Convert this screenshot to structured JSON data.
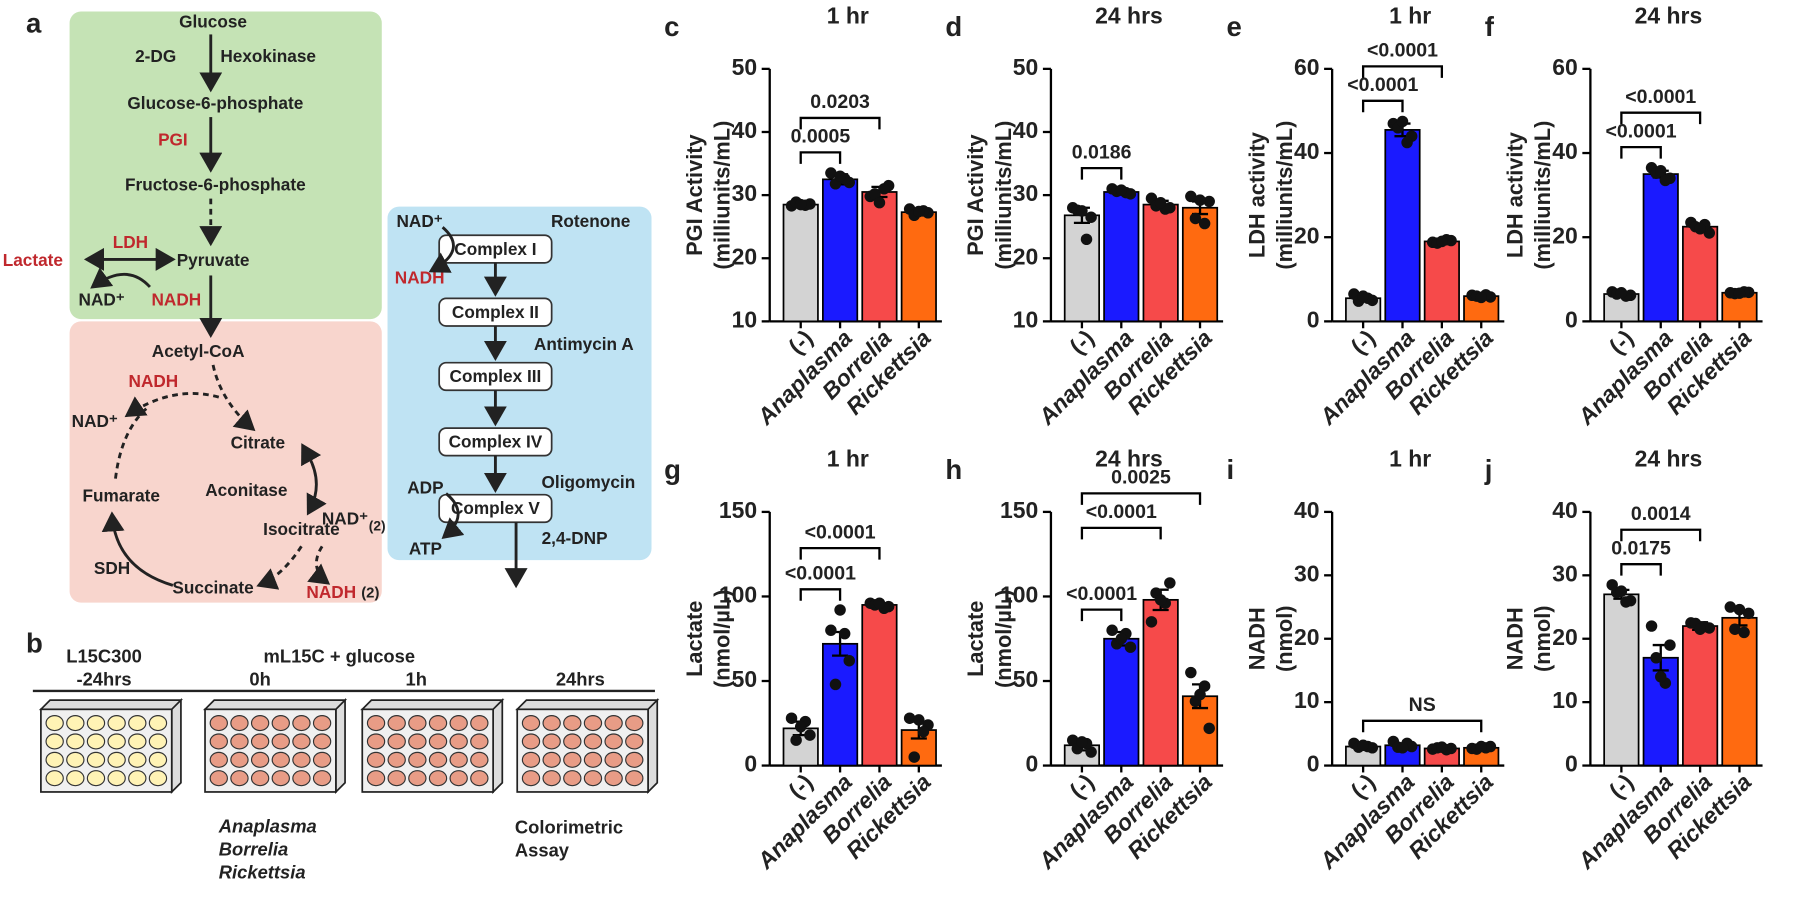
{
  "panel_a": {
    "letter": "a",
    "glucose": "Glucose",
    "dg": "2-DG",
    "hexokinase": "Hexokinase",
    "g6p": "Glucose-6-phosphate",
    "pgi": "PGI",
    "f6p": "Fructose-6-phosphate",
    "lactate": "Lactate",
    "ldh": "LDH",
    "pyruvate": "Pyruvate",
    "nad1": "NAD⁺",
    "nadh1": "NADH",
    "acetyl": "Acetyl-CoA",
    "nadh2": "NADH",
    "nad2": "NAD⁺",
    "citrate": "Citrate",
    "aconitase": "Aconitase",
    "fumarate": "Fumarate",
    "isocitrate": "Isocitrate",
    "nad3": "NAD⁺",
    "nad3n": "(2)",
    "sdh": "SDH",
    "succinate": "Succinate",
    "nadh3": "NADH",
    "nadh3n": "(2)",
    "nad4": "NAD⁺",
    "rotenone": "Rotenone",
    "c1": "Complex I",
    "nadh4": "NADH",
    "c2": "Complex II",
    "antimycin": "Antimycin A",
    "c3": "Complex III",
    "c4": "Complex IV",
    "oligomycin": "Oligomycin",
    "adp": "ADP",
    "c5": "Complex V",
    "atp": "ATP",
    "dnp": "2,4-DNP"
  },
  "panel_b": {
    "letter": "b",
    "medium1": "L15C300",
    "time1": "-24hrs",
    "medium2": "mL15C + glucose",
    "time2": "0h",
    "time3": "1h",
    "time4": "24hrs",
    "bact": [
      "Anaplasma",
      "Borrelia",
      "Rickettsia"
    ],
    "assay": [
      "Colorimetric",
      "Assay"
    ]
  },
  "chart_data": [
    {
      "type": "bar",
      "panel": "c",
      "title": "1 hr",
      "ylabel": [
        "PGI Activity",
        "(milliunits/mL)"
      ],
      "categories": [
        "(-)",
        "Anaplasma",
        "Borrelia",
        "Rickettsia"
      ],
      "colors": [
        "#d3d3d3",
        "#1a1aff",
        "#f64a4a",
        "#ff6a10"
      ],
      "ylim": [
        10,
        50
      ],
      "yticks": [
        10,
        20,
        30,
        40,
        50
      ],
      "values": [
        28.5,
        32.5,
        30.5,
        27.3
      ],
      "errors": [
        0.4,
        0.8,
        0.8,
        0.5
      ],
      "points": [
        [
          28.3,
          28.6,
          28.9,
          28.4,
          28.5
        ],
        [
          33.5,
          32,
          31.8,
          32.6,
          33
        ],
        [
          29.8,
          31.5,
          30.2,
          31,
          28.8
        ],
        [
          27.8,
          27.2,
          26.8,
          27.5,
          27.4
        ]
      ],
      "comparisons": [
        {
          "between": [
            "(-)",
            "Anaplasma"
          ],
          "label": "0.0005"
        },
        {
          "between": [
            "(-)",
            "Borrelia"
          ],
          "label": "0.0203"
        }
      ]
    },
    {
      "type": "bar",
      "panel": "d",
      "title": "24 hrs",
      "ylabel": [
        "PGI Activity",
        "(milliunits/mL)"
      ],
      "categories": [
        "(-)",
        "Anaplasma",
        "Borrelia",
        "Rickettsia"
      ],
      "colors": [
        "#d3d3d3",
        "#1a1aff",
        "#f64a4a",
        "#ff6a10"
      ],
      "ylim": [
        10,
        50
      ],
      "yticks": [
        10,
        20,
        30,
        40,
        50
      ],
      "values": [
        26.8,
        30.5,
        28.5,
        28.0
      ],
      "errors": [
        1.2,
        0.4,
        0.6,
        1.0
      ],
      "points": [
        [
          28,
          26.5,
          27.6,
          23,
          27.5
        ],
        [
          31,
          30.2,
          30.6,
          30.4,
          30.8
        ],
        [
          29.5,
          28,
          28.3,
          27.8,
          28.8
        ],
        [
          29.8,
          29,
          26.3,
          25.5,
          29.2
        ]
      ],
      "comparisons": [
        {
          "between": [
            "(-)",
            "Anaplasma"
          ],
          "label": "0.0186"
        }
      ]
    },
    {
      "type": "bar",
      "panel": "e",
      "title": "1 hr",
      "ylabel": [
        "LDH activity",
        "(milliunits/mL)"
      ],
      "categories": [
        "(-)",
        "Anaplasma",
        "Borrelia",
        "Rickettsia"
      ],
      "colors": [
        "#d3d3d3",
        "#1a1aff",
        "#f64a4a",
        "#ff6a10"
      ],
      "ylim": [
        0,
        60
      ],
      "yticks": [
        0,
        20,
        40,
        60
      ],
      "values": [
        5.5,
        45.5,
        19,
        6
      ],
      "errors": [
        0.6,
        1.5,
        0.4,
        0.3
      ],
      "points": [
        [
          6.5,
          5,
          4.8,
          5.5,
          6
        ],
        [
          47,
          44,
          46,
          42.5,
          47.5
        ],
        [
          18.8,
          19.2,
          18.6,
          19.4,
          19
        ],
        [
          6.2,
          5.8,
          6,
          6.3,
          5.7
        ]
      ],
      "comparisons": [
        {
          "between": [
            "(-)",
            "Anaplasma"
          ],
          "label": "<0.0001"
        },
        {
          "between": [
            "(-)",
            "Borrelia"
          ],
          "label": "<0.0001"
        }
      ]
    },
    {
      "type": "bar",
      "panel": "f",
      "title": "24 hrs",
      "ylabel": [
        "LDH activity",
        "(milliunits/mL)"
      ],
      "categories": [
        "(-)",
        "Anaplasma",
        "Borrelia",
        "Rickettsia"
      ],
      "colors": [
        "#d3d3d3",
        "#1a1aff",
        "#f64a4a",
        "#ff6a10"
      ],
      "ylim": [
        0,
        60
      ],
      "yticks": [
        0,
        20,
        40,
        60
      ],
      "values": [
        6.5,
        35,
        22.5,
        6.8
      ],
      "errors": [
        0.3,
        0.8,
        0.6,
        0.2
      ],
      "points": [
        [
          7,
          6.2,
          6.5,
          6,
          6.8
        ],
        [
          36.5,
          34,
          35.2,
          33.5,
          35.8
        ],
        [
          23.5,
          21,
          22.5,
          23,
          22
        ],
        [
          6.8,
          6.9,
          6.6,
          7,
          6.7
        ]
      ],
      "comparisons": [
        {
          "between": [
            "(-)",
            "Anaplasma"
          ],
          "label": "<0.0001"
        },
        {
          "between": [
            "(-)",
            "Borrelia"
          ],
          "label": "<0.0001"
        }
      ]
    },
    {
      "type": "bar",
      "panel": "g",
      "title": "1 hr",
      "ylabel": [
        "Lactate",
        "(nmol/µL)"
      ],
      "categories": [
        "(-)",
        "Anaplasma",
        "Borrelia",
        "Rickettsia"
      ],
      "colors": [
        "#d3d3d3",
        "#1a1aff",
        "#f64a4a",
        "#ff6a10"
      ],
      "ylim": [
        0,
        150
      ],
      "yticks": [
        0,
        50,
        100,
        150
      ],
      "values": [
        22,
        72,
        95,
        21
      ],
      "errors": [
        4,
        7,
        1,
        5
      ],
      "points": [
        [
          28,
          18,
          15,
          26,
          23
        ],
        [
          80,
          62,
          48,
          78,
          92
        ],
        [
          96,
          94,
          95,
          93,
          96
        ],
        [
          28,
          24,
          5,
          20,
          27
        ]
      ],
      "comparisons": [
        {
          "between": [
            "(-)",
            "Anaplasma"
          ],
          "label": "<0.0001"
        },
        {
          "between": [
            "(-)",
            "Borrelia"
          ],
          "label": "<0.0001"
        }
      ]
    },
    {
      "type": "bar",
      "panel": "h",
      "title": "24 hrs",
      "ylabel": [
        "Lactate",
        "(nmol/µL)"
      ],
      "categories": [
        "(-)",
        "Anaplasma",
        "Borrelia",
        "Rickettsia"
      ],
      "colors": [
        "#d3d3d3",
        "#1a1aff",
        "#f64a4a",
        "#ff6a10"
      ],
      "ylim": [
        0,
        150
      ],
      "yticks": [
        0,
        50,
        100,
        150
      ],
      "values": [
        12,
        75,
        98,
        41
      ],
      "errors": [
        3,
        4,
        6,
        7
      ],
      "points": [
        [
          15,
          8,
          10,
          13,
          14
        ],
        [
          80,
          70,
          72,
          78,
          75
        ],
        [
          85,
          108,
          102,
          96,
          98
        ],
        [
          55,
          22,
          38,
          47,
          42
        ]
      ],
      "comparisons": [
        {
          "between": [
            "(-)",
            "Anaplasma"
          ],
          "label": "<0.0001"
        },
        {
          "between": [
            "(-)",
            "Borrelia"
          ],
          "label": "<0.0001"
        },
        {
          "between": [
            "(-)",
            "Rickettsia"
          ],
          "label": "0.0025"
        }
      ]
    },
    {
      "type": "bar",
      "panel": "i",
      "title": "1 hr",
      "ylabel": [
        "NADH",
        "(nmol)"
      ],
      "categories": [
        "(-)",
        "Anaplasma",
        "Borrelia",
        "Rickettsia"
      ],
      "colors": [
        "#d3d3d3",
        "#1a1aff",
        "#f64a4a",
        "#ff6a10"
      ],
      "ylim": [
        0,
        40
      ],
      "yticks": [
        0,
        10,
        20,
        30,
        40
      ],
      "values": [
        3,
        3.2,
        2.7,
        2.8
      ],
      "errors": [
        0.3,
        0.3,
        0.2,
        0.2
      ],
      "points": [
        [
          3.5,
          2.8,
          2.9,
          3,
          3.2
        ],
        [
          3.8,
          3,
          2.9,
          3.5,
          2.8
        ],
        [
          2.6,
          2.7,
          2.8,
          2.5,
          2.9
        ],
        [
          2.7,
          3,
          2.6,
          2.8,
          3
        ]
      ],
      "comparisons": [
        {
          "between": [
            "(-)",
            "Rickettsia"
          ],
          "label": "NS"
        }
      ]
    },
    {
      "type": "bar",
      "panel": "j",
      "title": "24 hrs",
      "ylabel": [
        "NADH",
        "(nmol)"
      ],
      "categories": [
        "(-)",
        "Anaplasma",
        "Borrelia",
        "Rickettsia"
      ],
      "colors": [
        "#d3d3d3",
        "#1a1aff",
        "#f64a4a",
        "#ff6a10"
      ],
      "ylim": [
        0,
        40
      ],
      "yticks": [
        0,
        10,
        20,
        30,
        40
      ],
      "values": [
        27,
        17,
        22,
        23.3
      ],
      "errors": [
        0.7,
        2,
        0.6,
        1.2
      ],
      "points": [
        [
          28.5,
          26,
          27.3,
          25.8,
          27.5
        ],
        [
          22,
          19,
          17,
          13,
          14
        ],
        [
          22.5,
          21.7,
          22.4,
          21.9,
          21.5
        ],
        [
          25,
          24,
          21.5,
          21,
          24.6
        ]
      ],
      "comparisons": [
        {
          "between": [
            "(-)",
            "Anaplasma"
          ],
          "label": "0.0175"
        },
        {
          "between": [
            "(-)",
            "Borrelia"
          ],
          "label": "0.0014"
        }
      ]
    }
  ]
}
